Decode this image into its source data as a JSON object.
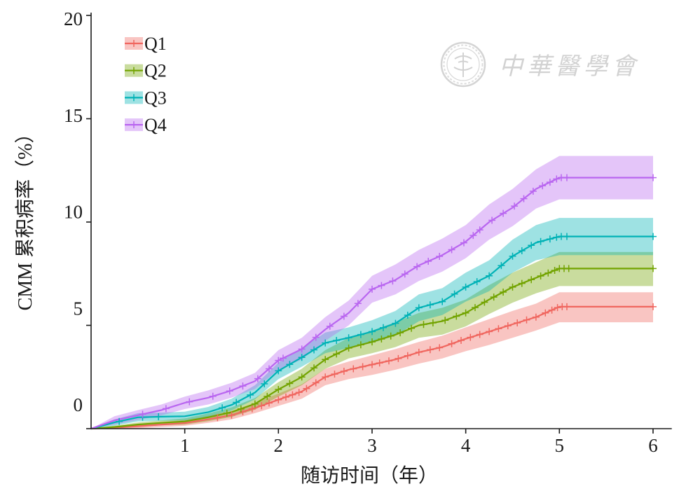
{
  "chart_data": {
    "type": "line",
    "xlabel": "随访时间（年）",
    "ylabel": "CMM 累积病率（%）",
    "xlim": [
      0,
      6.2
    ],
    "ylim": [
      0,
      20
    ],
    "xticks": [
      1,
      2,
      3,
      4,
      5,
      6
    ],
    "yticks": [
      0,
      5,
      10,
      15,
      20
    ],
    "grid": false,
    "legend": "top-left",
    "x": [
      0,
      0.25,
      0.5,
      0.75,
      1,
      1.25,
      1.5,
      1.75,
      2,
      2.25,
      2.5,
      2.75,
      3,
      3.25,
      3.5,
      3.75,
      4,
      4.25,
      4.5,
      4.75,
      5,
      6
    ],
    "series": [
      {
        "name": "Q1",
        "color": "#F0665F",
        "values": [
          0,
          0.05,
          0.12,
          0.2,
          0.27,
          0.45,
          0.65,
          1.0,
          1.4,
          1.8,
          2.5,
          2.85,
          3.1,
          3.35,
          3.7,
          3.95,
          4.35,
          4.7,
          5.05,
          5.4,
          5.9,
          5.9
        ],
        "lower": [
          0,
          0.0,
          0.02,
          0.08,
          0.14,
          0.28,
          0.45,
          0.75,
          1.1,
          1.45,
          2.1,
          2.4,
          2.6,
          2.85,
          3.15,
          3.4,
          3.75,
          4.05,
          4.4,
          4.75,
          5.15,
          5.15
        ],
        "upper": [
          0,
          0.12,
          0.22,
          0.32,
          0.42,
          0.62,
          0.85,
          1.25,
          1.7,
          2.15,
          2.9,
          3.25,
          3.55,
          3.85,
          4.2,
          4.5,
          4.9,
          5.3,
          5.7,
          6.05,
          6.6,
          6.6
        ],
        "censored": [
          1.35,
          1.5,
          1.62,
          1.72,
          1.82,
          1.9,
          2.0,
          2.08,
          2.15,
          2.22,
          2.3,
          2.4,
          2.5,
          2.6,
          2.7,
          2.8,
          2.9,
          3.0,
          3.08,
          3.18,
          3.28,
          3.38,
          3.5,
          3.62,
          3.72,
          3.85,
          3.95,
          4.05,
          4.15,
          4.25,
          4.35,
          4.45,
          4.55,
          4.65,
          4.75,
          4.85,
          4.92,
          4.98,
          5.03,
          5.08,
          6.0
        ]
      },
      {
        "name": "Q2",
        "color": "#72A300",
        "values": [
          0,
          0.08,
          0.2,
          0.28,
          0.35,
          0.55,
          0.8,
          1.2,
          1.9,
          2.5,
          3.35,
          3.9,
          4.2,
          4.55,
          5.0,
          5.2,
          5.6,
          6.25,
          6.85,
          7.3,
          7.75,
          7.75
        ],
        "lower": [
          0,
          0.02,
          0.1,
          0.16,
          0.2,
          0.36,
          0.57,
          0.92,
          1.55,
          2.1,
          2.9,
          3.4,
          3.65,
          3.95,
          4.4,
          4.55,
          4.95,
          5.55,
          6.1,
          6.55,
          6.9,
          6.9
        ],
        "upper": [
          0,
          0.15,
          0.3,
          0.4,
          0.5,
          0.74,
          1.03,
          1.48,
          2.25,
          2.9,
          3.8,
          4.4,
          4.75,
          5.15,
          5.6,
          5.85,
          6.25,
          6.95,
          7.55,
          8.05,
          8.55,
          8.55
        ],
        "censored": [
          1.45,
          1.6,
          1.75,
          1.88,
          2.0,
          2.12,
          2.25,
          2.38,
          2.5,
          2.62,
          2.75,
          2.88,
          3.0,
          3.1,
          3.2,
          3.3,
          3.42,
          3.55,
          3.65,
          3.78,
          3.9,
          4.0,
          4.1,
          4.2,
          4.3,
          4.4,
          4.5,
          4.6,
          4.7,
          4.8,
          4.88,
          4.95,
          5.0,
          5.05,
          5.1,
          6.0
        ]
      },
      {
        "name": "Q3",
        "color": "#00B2B6",
        "values": [
          0,
          0.3,
          0.55,
          0.58,
          0.6,
          0.8,
          1.15,
          1.75,
          2.8,
          3.45,
          4.15,
          4.4,
          4.7,
          5.1,
          5.85,
          6.15,
          6.85,
          7.4,
          8.35,
          9.0,
          9.3,
          9.3
        ],
        "lower": [
          0,
          0.15,
          0.35,
          0.38,
          0.4,
          0.58,
          0.88,
          1.42,
          2.4,
          3.0,
          3.65,
          3.9,
          4.15,
          4.5,
          5.2,
          5.5,
          6.15,
          6.65,
          7.55,
          8.15,
          8.4,
          8.4
        ],
        "upper": [
          0,
          0.45,
          0.75,
          0.78,
          0.82,
          1.05,
          1.45,
          2.1,
          3.2,
          3.9,
          4.65,
          4.9,
          5.25,
          5.7,
          6.5,
          6.8,
          7.55,
          8.15,
          9.15,
          9.85,
          10.2,
          10.2
        ],
        "censored": [
          0.3,
          0.55,
          0.72,
          1.4,
          1.55,
          1.7,
          1.85,
          2.0,
          2.12,
          2.25,
          2.38,
          2.5,
          2.62,
          2.75,
          2.88,
          3.0,
          3.12,
          3.25,
          3.38,
          3.5,
          3.62,
          3.75,
          3.88,
          4.0,
          4.12,
          4.25,
          4.38,
          4.5,
          4.6,
          4.7,
          4.8,
          4.9,
          4.97,
          5.02,
          5.08,
          6.0
        ]
      },
      {
        "name": "Q4",
        "color": "#B966F0",
        "values": [
          0,
          0.4,
          0.65,
          0.9,
          1.25,
          1.5,
          1.85,
          2.3,
          3.3,
          3.85,
          4.8,
          5.6,
          6.75,
          7.2,
          7.9,
          8.4,
          9.05,
          10.0,
          10.7,
          11.6,
          12.15,
          12.15
        ],
        "lower": [
          0,
          0.2,
          0.42,
          0.64,
          0.95,
          1.17,
          1.5,
          1.92,
          2.85,
          3.35,
          4.25,
          5.0,
          6.1,
          6.5,
          7.15,
          7.6,
          8.25,
          9.15,
          9.8,
          10.65,
          11.1,
          11.1
        ],
        "upper": [
          0,
          0.6,
          0.9,
          1.17,
          1.55,
          1.85,
          2.22,
          2.7,
          3.8,
          4.4,
          5.4,
          6.2,
          7.4,
          7.95,
          8.65,
          9.2,
          9.85,
          10.85,
          11.6,
          12.55,
          13.2,
          13.2
        ],
        "censored": [
          0.55,
          0.8,
          1.05,
          1.3,
          1.48,
          1.62,
          1.78,
          1.9,
          2.0,
          2.05,
          2.25,
          2.4,
          2.55,
          2.7,
          2.85,
          3.0,
          3.1,
          3.22,
          3.35,
          3.48,
          3.6,
          3.72,
          3.85,
          3.98,
          4.08,
          4.15,
          4.28,
          4.4,
          4.52,
          4.62,
          4.72,
          4.82,
          4.9,
          4.97,
          5.02,
          5.08,
          6.0
        ]
      }
    ]
  },
  "watermark": {
    "text": "中華醫學會"
  }
}
